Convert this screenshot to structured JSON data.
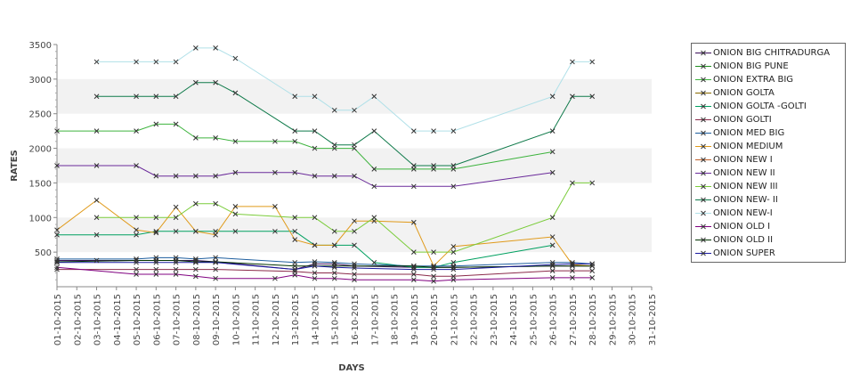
{
  "chart_data": {
    "type": "line",
    "title": "",
    "xlabel": "DAYS",
    "ylabel": "RATES",
    "ylim": [
      0,
      3500
    ],
    "yticks": [
      500,
      1000,
      1500,
      2000,
      2500,
      3000,
      3500
    ],
    "ytick_labels": [
      "500",
      "1000",
      "1500",
      "2000",
      "2500",
      "3000",
      "3500"
    ],
    "alt_bands": true,
    "legend_position": "right",
    "categories": [
      "01-10-2015",
      "02-10-2015",
      "03-10-2015",
      "04-10-2015",
      "05-10-2015",
      "06-10-2015",
      "07-10-2015",
      "08-10-2015",
      "09-10-2015",
      "10-10-2015",
      "11-10-2015",
      "12-10-2015",
      "13-10-2015",
      "14-10-2015",
      "15-10-2015",
      "16-10-2015",
      "17-10-2015",
      "18-10-2015",
      "19-10-2015",
      "20-10-2015",
      "21-10-2015",
      "22-10-2015",
      "23-10-2015",
      "24-10-2015",
      "25-10-2015",
      "26-10-2015",
      "27-10-2015",
      "28-10-2015",
      "29-10-2015",
      "30-10-2015",
      "31-10-2015"
    ],
    "series": [
      {
        "name": "ONION BIG CHITRADURGA",
        "color": "#3b0f5a",
        "values": [
          380,
          null,
          380,
          null,
          380,
          380,
          380,
          380,
          360,
          null,
          null,
          null,
          250,
          330,
          330,
          300,
          null,
          null,
          280,
          280,
          280,
          null,
          null,
          null,
          null,
          300,
          300,
          300,
          null,
          null,
          null
        ]
      },
      {
        "name": "ONION BIG PUNE",
        "color": "#1f8f1f",
        "values": [
          null,
          null,
          null,
          null,
          null,
          null,
          null,
          null,
          null,
          null,
          null,
          null,
          null,
          null,
          null,
          null,
          null,
          null,
          null,
          null,
          null,
          null,
          null,
          null,
          null,
          null,
          null,
          null,
          null,
          null,
          null
        ]
      },
      {
        "name": "ONION EXTRA BIG",
        "color": "#3db33d",
        "values": [
          2250,
          null,
          2250,
          null,
          2250,
          2350,
          2350,
          2150,
          2150,
          2100,
          null,
          2100,
          2100,
          2000,
          2000,
          2000,
          1700,
          null,
          1700,
          1700,
          1700,
          null,
          null,
          null,
          null,
          1950,
          null,
          null,
          null,
          null,
          null
        ]
      },
      {
        "name": "ONION GOLTA",
        "color": "#8a6a00",
        "values": [
          null,
          null,
          null,
          null,
          null,
          null,
          null,
          null,
          null,
          null,
          null,
          null,
          null,
          null,
          null,
          null,
          null,
          null,
          null,
          null,
          null,
          null,
          null,
          null,
          null,
          null,
          null,
          null,
          null,
          null,
          null
        ]
      },
      {
        "name": "ONION GOLTA -GOLTI",
        "color": "#00a060",
        "values": [
          750,
          null,
          750,
          null,
          750,
          800,
          800,
          800,
          800,
          800,
          null,
          800,
          800,
          600,
          600,
          600,
          350,
          null,
          280,
          280,
          350,
          null,
          null,
          null,
          null,
          600,
          null,
          null,
          null,
          null,
          null
        ]
      },
      {
        "name": "ONION GOLTI",
        "color": "#8a2a4a",
        "values": [
          250,
          null,
          null,
          null,
          250,
          250,
          250,
          250,
          250,
          null,
          null,
          null,
          220,
          200,
          200,
          180,
          null,
          null,
          180,
          150,
          150,
          null,
          null,
          null,
          null,
          230,
          230,
          230,
          null,
          null,
          null
        ]
      },
      {
        "name": "ONION MED BIG",
        "color": "#1f5f9f",
        "values": [
          400,
          null,
          null,
          null,
          400,
          420,
          420,
          400,
          420,
          null,
          null,
          null,
          350,
          360,
          350,
          330,
          null,
          null,
          300,
          300,
          300,
          null,
          null,
          null,
          null,
          350,
          350,
          330,
          null,
          null,
          null
        ]
      },
      {
        "name": "ONION MEDIUM",
        "color": "#e09a1a",
        "values": [
          820,
          null,
          1250,
          null,
          820,
          780,
          1150,
          800,
          750,
          1160,
          null,
          1160,
          680,
          600,
          600,
          950,
          950,
          null,
          930,
          300,
          580,
          null,
          null,
          null,
          null,
          720,
          320,
          300,
          null,
          null,
          null
        ]
      },
      {
        "name": "ONION NEW I",
        "color": "#c0602a",
        "values": [
          null,
          null,
          null,
          null,
          null,
          null,
          null,
          null,
          null,
          null,
          null,
          null,
          null,
          null,
          null,
          null,
          null,
          null,
          null,
          null,
          null,
          null,
          null,
          null,
          null,
          null,
          null,
          null,
          null,
          null,
          null
        ]
      },
      {
        "name": "ONION NEW II",
        "color": "#6a2a9a",
        "values": [
          1750,
          null,
          1750,
          null,
          1750,
          1600,
          1600,
          1600,
          1600,
          1650,
          null,
          1650,
          1650,
          1600,
          1600,
          1600,
          1450,
          null,
          1450,
          null,
          1450,
          null,
          null,
          null,
          null,
          1650,
          null,
          null,
          null,
          null,
          null
        ]
      },
      {
        "name": "ONION NEW III",
        "color": "#7acc3a",
        "values": [
          null,
          null,
          1000,
          null,
          1000,
          1000,
          1000,
          1200,
          1200,
          1050,
          null,
          null,
          1000,
          1000,
          800,
          800,
          1000,
          null,
          500,
          500,
          500,
          null,
          null,
          null,
          null,
          1000,
          1500,
          1500,
          null,
          null,
          null
        ]
      },
      {
        "name": "ONION NEW- II",
        "color": "#0f7a4a",
        "values": [
          null,
          null,
          2750,
          null,
          2750,
          2750,
          2750,
          2950,
          2950,
          2800,
          null,
          null,
          2250,
          2250,
          2050,
          2050,
          2250,
          null,
          1750,
          1750,
          1750,
          null,
          null,
          null,
          null,
          2250,
          2750,
          2750,
          null,
          null,
          null
        ]
      },
      {
        "name": "ONION NEW-I",
        "color": "#b0e0e8",
        "values": [
          null,
          null,
          3250,
          null,
          3250,
          3250,
          3250,
          3450,
          3450,
          3300,
          null,
          null,
          2750,
          2750,
          2550,
          2550,
          2750,
          null,
          2250,
          2250,
          2250,
          null,
          null,
          null,
          null,
          2750,
          3250,
          3250,
          null,
          null,
          null
        ]
      },
      {
        "name": "ONION OLD I",
        "color": "#800080",
        "values": [
          280,
          null,
          null,
          null,
          180,
          180,
          180,
          150,
          120,
          null,
          null,
          120,
          170,
          120,
          120,
          100,
          null,
          null,
          100,
          80,
          100,
          null,
          null,
          null,
          null,
          130,
          130,
          130,
          null,
          null,
          null
        ]
      },
      {
        "name": "ONION OLD II",
        "color": "#003300",
        "values": [
          360,
          null,
          null,
          null,
          380,
          380,
          380,
          360,
          360,
          null,
          null,
          null,
          300,
          300,
          300,
          300,
          null,
          null,
          300,
          280,
          280,
          null,
          null,
          null,
          null,
          300,
          300,
          300,
          null,
          null,
          null
        ]
      },
      {
        "name": "ONION SUPER",
        "color": "#1a1aa0",
        "values": [
          350,
          null,
          null,
          null,
          350,
          350,
          350,
          350,
          350,
          null,
          null,
          null,
          250,
          300,
          280,
          270,
          null,
          null,
          250,
          250,
          250,
          null,
          null,
          null,
          null,
          320,
          330,
          330,
          null,
          null,
          null
        ]
      }
    ]
  }
}
